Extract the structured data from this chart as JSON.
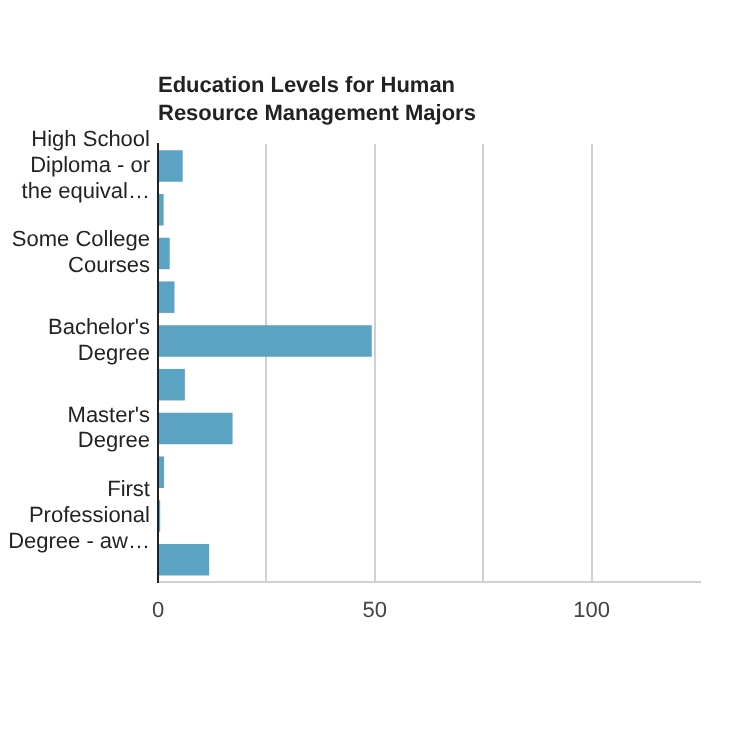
{
  "chart_data": {
    "type": "bar",
    "orientation": "horizontal",
    "title": "Education Levels for Human Resource Management Majors",
    "categories": [
      "High School Diploma - or the equival…",
      null,
      "Some College Courses",
      null,
      "Bachelor's Degree",
      null,
      "Master's Degree",
      null,
      "First Professional Degree - aw…",
      null
    ],
    "values": [
      5.7,
      1.3,
      2.7,
      3.8,
      49.3,
      6.2,
      17.2,
      1.4,
      0.5,
      11.8
    ],
    "color": "#5ba3c2",
    "xlim": [
      0,
      125
    ],
    "xticks": [
      0,
      {
        "value": 25,
        "label": null
      },
      50,
      {
        "value": 75,
        "label": null
      },
      100
    ],
    "grid": "x",
    "legend": false
  }
}
